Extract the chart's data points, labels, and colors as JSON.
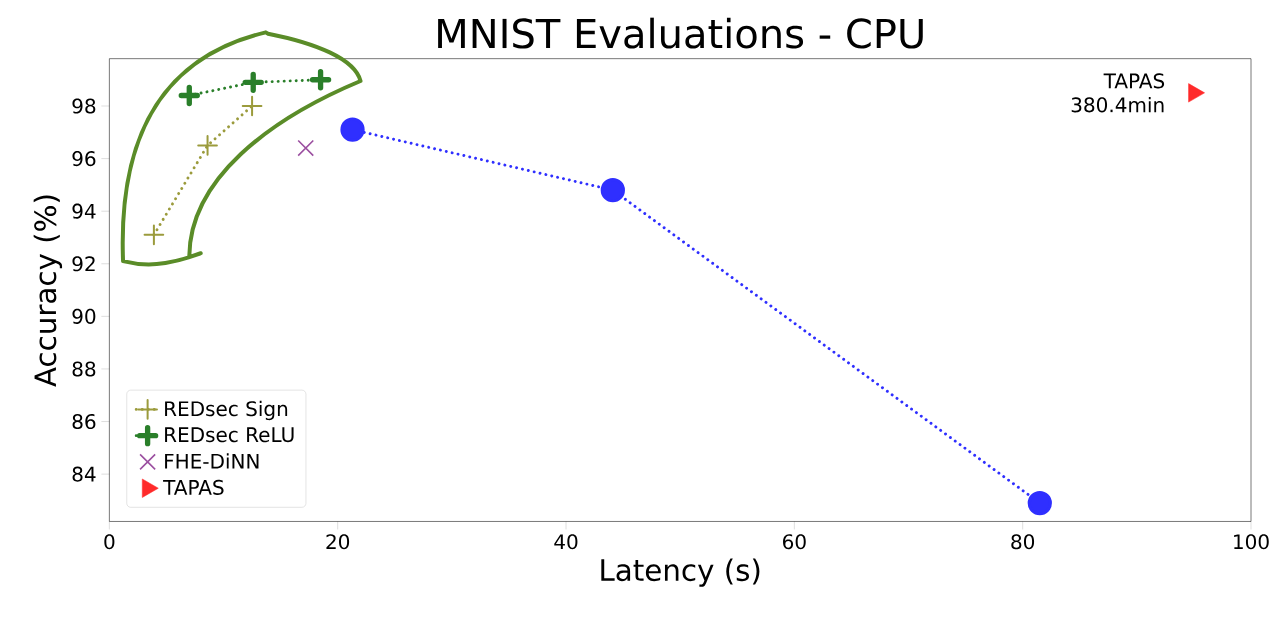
{
  "chart_data": {
    "type": "line",
    "title": "MNIST Evaluations - CPU",
    "xlabel": "Latency (s)",
    "ylabel": "Accuracy (%)",
    "xlim": [
      0,
      100
    ],
    "ylim": [
      82.2,
      99.8
    ],
    "xticks": [
      0,
      20,
      40,
      60,
      80,
      100
    ],
    "yticks": [
      84,
      86,
      88,
      90,
      92,
      94,
      96,
      98
    ],
    "grid": false,
    "legend": "bottom left",
    "series": [
      {
        "name": "REDsec Sign",
        "type": "line",
        "color": "#9b9b3c",
        "marker": "cross",
        "line_style": "dotted",
        "x": [
          3.9,
          8.6,
          12.5
        ],
        "values": [
          93.1,
          96.5,
          98.0
        ]
      },
      {
        "name": "REDsec ReLU",
        "type": "line",
        "color": "#2a7f2a",
        "marker": "cross",
        "line_style": "dotted",
        "x": [
          7.0,
          12.6,
          18.5
        ],
        "values": [
          98.4,
          98.9,
          99.0
        ]
      },
      {
        "name": "FHE-DiNN",
        "type": "scatter",
        "color": "#9b4fa0",
        "marker": "cross",
        "x": [
          17.2
        ],
        "values": [
          96.4
        ]
      },
      {
        "type": "line",
        "color": "#2f2fff",
        "marker": "circle",
        "line_style": "dotted",
        "x": [
          21.3,
          44.1,
          81.5
        ],
        "values": [
          97.1,
          94.8,
          82.9
        ]
      },
      {
        "name": "TAPAS",
        "type": "scatter",
        "color": "#ff2a2a",
        "marker": "triangle",
        "x": [
          95.0
        ],
        "values": [
          98.5
        ]
      }
    ],
    "annotations": [
      {
        "text": "TAPAS 380.4min",
        "x": 95.0,
        "y": 98.5
      }
    ]
  }
}
